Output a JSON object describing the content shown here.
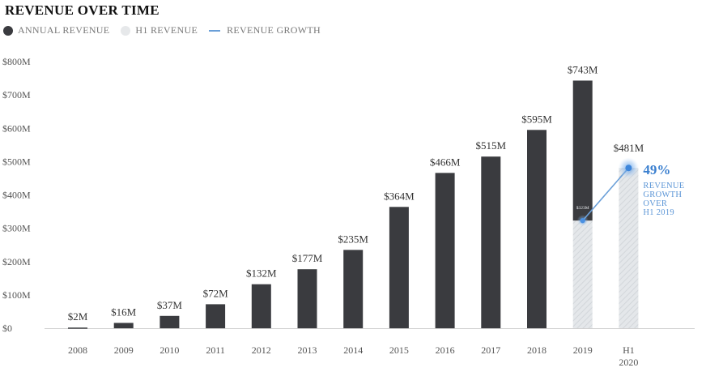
{
  "chart_data": {
    "type": "bar",
    "title": "REVENUE OVER TIME",
    "legend": [
      {
        "label": "ANNUAL REVENUE",
        "color": "#3a3b3f",
        "marker": "dot"
      },
      {
        "label": "H1 REVENUE",
        "color": "#e6e8ea",
        "marker": "dot"
      },
      {
        "label": "REVENUE GROWTH",
        "color": "#6a9fd8",
        "marker": "line"
      }
    ],
    "ylim": [
      0,
      800
    ],
    "y_ticks": [
      {
        "value": 0,
        "label": "$0"
      },
      {
        "value": 100,
        "label": "$100M"
      },
      {
        "value": 200,
        "label": "$200M"
      },
      {
        "value": 300,
        "label": "$300M"
      },
      {
        "value": 400,
        "label": "$400M"
      },
      {
        "value": 500,
        "label": "$500M"
      },
      {
        "value": 600,
        "label": "$600M"
      },
      {
        "value": 700,
        "label": "$700M"
      },
      {
        "value": 800,
        "label": "$800M"
      }
    ],
    "categories": [
      "2008",
      "2009",
      "2010",
      "2011",
      "2012",
      "2013",
      "2014",
      "2015",
      "2016",
      "2017",
      "2018",
      "2019",
      "H1 2020"
    ],
    "category_labels": [
      [
        "2008"
      ],
      [
        "2009"
      ],
      [
        "2010"
      ],
      [
        "2011"
      ],
      [
        "2012"
      ],
      [
        "2013"
      ],
      [
        "2014"
      ],
      [
        "2015"
      ],
      [
        "2016"
      ],
      [
        "2017"
      ],
      [
        "2018"
      ],
      [
        "2019"
      ],
      [
        "H1",
        "2020"
      ]
    ],
    "series": [
      {
        "name": "ANNUAL REVENUE",
        "values": [
          2,
          16,
          37,
          72,
          132,
          177,
          235,
          364,
          466,
          515,
          595,
          743,
          null
        ],
        "labels": [
          "$2M",
          "$16M",
          "$37M",
          "$72M",
          "$132M",
          "$177M",
          "$235M",
          "$364M",
          "$466M",
          "$515M",
          "$595M",
          "$743M",
          ""
        ]
      },
      {
        "name": "H1 REVENUE",
        "values": [
          null,
          null,
          null,
          null,
          null,
          null,
          null,
          null,
          null,
          null,
          null,
          323,
          481
        ],
        "labels": [
          "",
          "",
          "",
          "",
          "",
          "",
          "",
          "",
          "",
          "",
          "",
          "$323M",
          "$481M"
        ]
      }
    ],
    "growth": {
      "from": "2019",
      "to": "H1 2020",
      "from_value": 323,
      "to_value": 481,
      "label_big": "49%",
      "label_lines": [
        "REVENUE",
        "GROWTH",
        "OVER",
        "H1 2019"
      ]
    },
    "colors": {
      "annual": "#3a3b3f",
      "h1": "#e3e6e9",
      "h1_hatch": "#cfd3d7",
      "growth": "#6a9fd8",
      "h1_label": "#aaaaaa"
    }
  }
}
